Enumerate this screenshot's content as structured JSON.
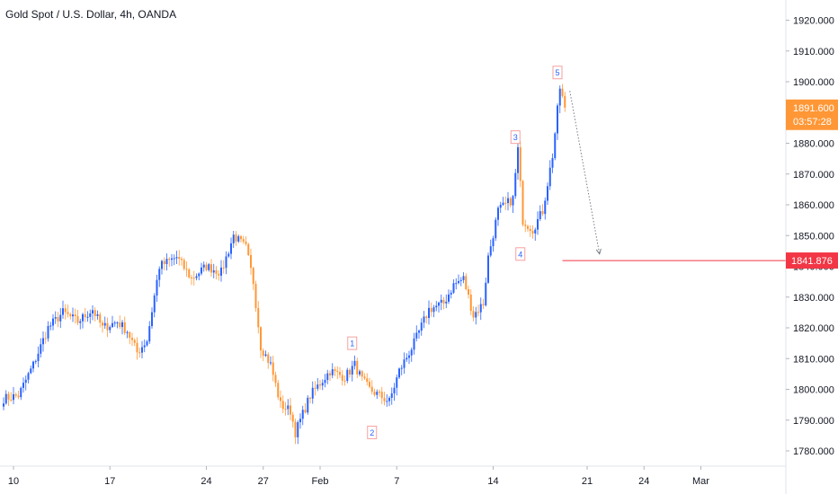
{
  "title": "Gold Spot / U.S. Dollar, 4h, OANDA",
  "colors": {
    "up": "#2962ff",
    "down": "#ff9736",
    "target_line": "#f23645",
    "current_tag": "#ff9736",
    "target_tag": "#f23645",
    "wave_box": "#f7a1a1",
    "wave_text": "#2962ff"
  },
  "current_price": {
    "price": "1891.600",
    "countdown": "03:57:28"
  },
  "target": {
    "price": "1841.876"
  },
  "chart_data": {
    "type": "candlestick",
    "title": "Gold Spot / U.S. Dollar, 4h, OANDA",
    "y_ticks": [
      1780,
      1790,
      1800,
      1810,
      1820,
      1830,
      1840,
      1850,
      1860,
      1870,
      1880,
      1890,
      1900,
      1910,
      1920
    ],
    "y_tick_labels": [
      "1780.000",
      "1790.000",
      "1800.000",
      "1810.000",
      "1820.000",
      "1830.000",
      "1840.000",
      "1850.000",
      "1860.000",
      "1870.000",
      "1880.000",
      "1890.000",
      "1900.000",
      "1910.000",
      "1920.000"
    ],
    "ylim": [
      1776,
      1924
    ],
    "x_ticks": [
      {
        "label": "10",
        "bar": 4
      },
      {
        "label": "17",
        "bar": 43
      },
      {
        "label": "24",
        "bar": 82
      },
      {
        "label": "27",
        "bar": 105
      },
      {
        "label": "Feb",
        "bar": 128
      },
      {
        "label": "7",
        "bar": 159
      },
      {
        "label": "14",
        "bar": 198
      },
      {
        "label": "21",
        "bar": 236
      },
      {
        "label": "24",
        "bar": 259
      },
      {
        "label": "Mar",
        "bar": 282
      }
    ],
    "total_bars": 296,
    "waypoints": [
      [
        0,
        1797
      ],
      [
        6,
        1798
      ],
      [
        12,
        1808
      ],
      [
        18,
        1820
      ],
      [
        24,
        1825
      ],
      [
        30,
        1822
      ],
      [
        36,
        1826
      ],
      [
        40,
        1820
      ],
      [
        46,
        1822
      ],
      [
        50,
        1819
      ],
      [
        54,
        1812
      ],
      [
        58,
        1816
      ],
      [
        63,
        1840
      ],
      [
        70,
        1843
      ],
      [
        76,
        1836
      ],
      [
        82,
        1840
      ],
      [
        88,
        1838
      ],
      [
        93,
        1850
      ],
      [
        98,
        1846
      ],
      [
        101,
        1835
      ],
      [
        104,
        1814
      ],
      [
        108,
        1808
      ],
      [
        112,
        1795
      ],
      [
        116,
        1793
      ],
      [
        118,
        1786
      ],
      [
        124,
        1798
      ],
      [
        132,
        1806
      ],
      [
        138,
        1804
      ],
      [
        142,
        1808
      ],
      [
        145,
        1803
      ],
      [
        148,
        1800
      ],
      [
        154,
        1797
      ],
      [
        156,
        1796
      ],
      [
        160,
        1806
      ],
      [
        166,
        1815
      ],
      [
        172,
        1826
      ],
      [
        178,
        1828
      ],
      [
        182,
        1834
      ],
      [
        186,
        1836
      ],
      [
        190,
        1824
      ],
      [
        194,
        1828
      ],
      [
        196,
        1843
      ],
      [
        200,
        1858
      ],
      [
        206,
        1862
      ],
      [
        208,
        1878
      ],
      [
        210,
        1855
      ],
      [
        214,
        1852
      ],
      [
        218,
        1858
      ],
      [
        222,
        1876
      ],
      [
        225,
        1898
      ],
      [
        227,
        1891.6
      ]
    ],
    "waves": [
      {
        "label": "1",
        "bar": 141,
        "price": 1815
      },
      {
        "label": "2",
        "bar": 149,
        "price": 1786
      },
      {
        "label": "3",
        "bar": 207,
        "price": 1882
      },
      {
        "label": "4",
        "bar": 209,
        "price": 1844
      },
      {
        "label": "5",
        "bar": 224,
        "price": 1903
      }
    ],
    "projection": {
      "from_bar": 229,
      "from_price": 1897,
      "to_bar": 241,
      "to_price": 1844
    },
    "target_line": {
      "from_bar": 226,
      "price": 1841.876
    }
  }
}
